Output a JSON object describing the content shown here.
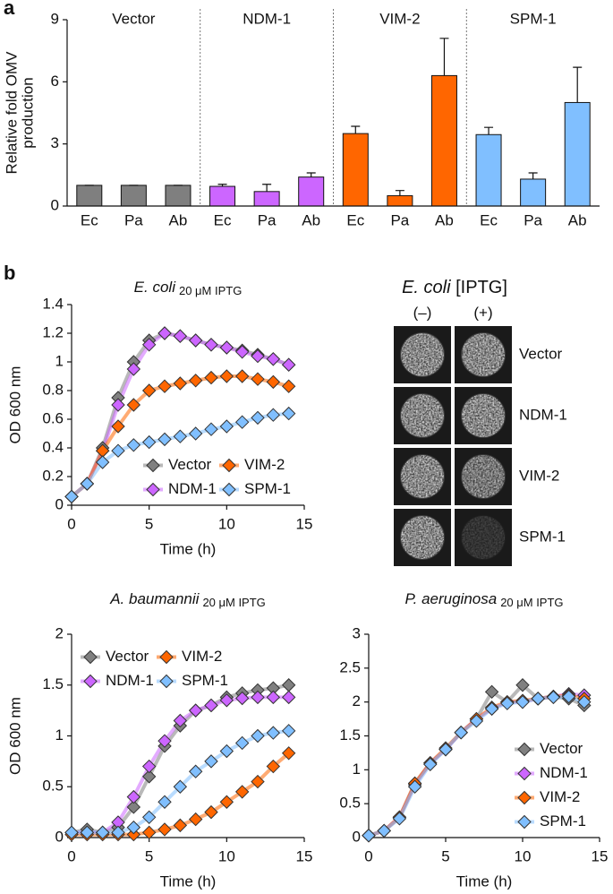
{
  "panel_labels": [
    "a",
    "b"
  ],
  "plate": {
    "title": "E. coli",
    "title_note": "[IPTG]",
    "columns": [
      "(–)",
      "(+)"
    ],
    "rows": [
      "Vector",
      "NDM-1",
      "VIM-2",
      "SPM-1"
    ]
  },
  "chart_data": [
    {
      "type": "bar",
      "y_label": [
        "Relative fold OMV",
        "production"
      ],
      "categories": [
        "Ec",
        "Pa",
        "Ab"
      ],
      "ylim": [
        0,
        9
      ],
      "yticks": [
        0,
        3,
        6,
        9
      ],
      "series": [
        {
          "name": "Vector",
          "color": "#7f7f7f",
          "values": [
            1,
            1,
            1
          ],
          "errors": [
            0,
            0,
            0
          ]
        },
        {
          "name": "NDM-1",
          "color": "#cc66ff",
          "values": [
            0.95,
            0.7,
            1.4
          ],
          "errors": [
            0.1,
            0.35,
            0.2
          ]
        },
        {
          "name": "VIM-2",
          "color": "#ff6600",
          "values": [
            3.5,
            0.5,
            6.3
          ],
          "errors": [
            0.35,
            0.25,
            1.8
          ]
        },
        {
          "name": "SPM-1",
          "color": "#80bfff",
          "values": [
            3.45,
            1.3,
            5.0
          ],
          "errors": [
            0.35,
            0.3,
            1.7
          ]
        }
      ]
    },
    {
      "type": "line",
      "title": "E. coli",
      "title_note": "20 μM IPTG",
      "x_label": "Time (h)",
      "y_label": "OD 600 nm",
      "x": [
        0,
        1,
        2,
        3,
        4,
        5,
        6,
        7,
        8,
        9,
        10,
        11,
        12,
        13,
        14
      ],
      "xlim": [
        0,
        15
      ],
      "xticks": [
        0,
        5,
        10,
        15
      ],
      "ylim": [
        0,
        1.4
      ],
      "yticks": [
        0,
        0.2,
        0.4,
        0.6,
        0.8,
        1,
        1.2,
        1.4
      ],
      "legend": "lower right",
      "legend_columns": 2,
      "series": [
        {
          "name": "Vector",
          "color": "#808080",
          "values": [
            0.06,
            0.15,
            0.4,
            0.75,
            1.0,
            1.15,
            1.2,
            1.18,
            1.15,
            1.12,
            1.1,
            1.08,
            1.05,
            1.02,
            0.98
          ]
        },
        {
          "name": "NDM-1",
          "color": "#cc66ff",
          "values": [
            0.06,
            0.15,
            0.38,
            0.7,
            0.95,
            1.12,
            1.2,
            1.18,
            1.15,
            1.12,
            1.1,
            1.07,
            1.04,
            1.02,
            0.98
          ]
        },
        {
          "name": "VIM-2",
          "color": "#ff6600",
          "values": [
            0.06,
            0.15,
            0.38,
            0.55,
            0.7,
            0.8,
            0.83,
            0.85,
            0.87,
            0.89,
            0.9,
            0.9,
            0.88,
            0.86,
            0.83
          ]
        },
        {
          "name": "SPM-1",
          "color": "#80bfff",
          "values": [
            0.06,
            0.15,
            0.3,
            0.38,
            0.42,
            0.44,
            0.46,
            0.48,
            0.5,
            0.53,
            0.55,
            0.58,
            0.61,
            0.63,
            0.64
          ]
        }
      ]
    },
    {
      "type": "line",
      "title": "A. baumannii",
      "title_note": "20 μM IPTG",
      "x_label": "Time (h)",
      "y_label": "OD 600 nm",
      "x": [
        0,
        1,
        2,
        3,
        4,
        5,
        6,
        7,
        8,
        9,
        10,
        11,
        12,
        13,
        14
      ],
      "xlim": [
        0,
        15
      ],
      "xticks": [
        0,
        5,
        10,
        15
      ],
      "ylim": [
        0,
        2
      ],
      "yticks": [
        0,
        0.5,
        1,
        1.5,
        2
      ],
      "legend": "upper left",
      "legend_columns": 2,
      "series": [
        {
          "name": "Vector",
          "color": "#808080",
          "values": [
            0.05,
            0.08,
            0.05,
            0.1,
            0.3,
            0.6,
            0.9,
            1.1,
            1.25,
            1.3,
            1.38,
            1.42,
            1.45,
            1.47,
            1.5
          ]
        },
        {
          "name": "NDM-1",
          "color": "#cc66ff",
          "values": [
            0.05,
            0.05,
            0.05,
            0.15,
            0.4,
            0.7,
            0.95,
            1.15,
            1.25,
            1.3,
            1.35,
            1.37,
            1.38,
            1.38,
            1.38
          ]
        },
        {
          "name": "VIM-2",
          "color": "#ff6600",
          "values": [
            0.03,
            0.03,
            0.03,
            0.03,
            0.03,
            0.05,
            0.08,
            0.12,
            0.18,
            0.25,
            0.35,
            0.45,
            0.55,
            0.7,
            0.83
          ]
        },
        {
          "name": "SPM-1",
          "color": "#80bfff",
          "values": [
            0.05,
            0.05,
            0.05,
            0.05,
            0.1,
            0.2,
            0.35,
            0.5,
            0.65,
            0.75,
            0.85,
            0.93,
            1.0,
            1.03,
            1.05
          ]
        }
      ]
    },
    {
      "type": "line",
      "title": "P. aeruginosa",
      "title_note": "20 μM IPTG",
      "x_label": "Time (h)",
      "x": [
        0,
        1,
        2,
        3,
        4,
        5,
        6,
        7,
        8,
        9,
        10,
        11,
        12,
        13,
        14
      ],
      "xlim": [
        0,
        15
      ],
      "xticks": [
        0,
        5,
        10,
        15
      ],
      "ylim": [
        0,
        3
      ],
      "yticks": [
        0,
        0.5,
        1,
        1.5,
        2,
        2.5,
        3
      ],
      "legend": "lower right",
      "legend_columns": 1,
      "series": [
        {
          "name": "Vector",
          "color": "#808080",
          "values": [
            0.03,
            0.1,
            0.3,
            0.8,
            1.1,
            1.3,
            1.55,
            1.75,
            2.15,
            2.0,
            2.25,
            2.05,
            2.08,
            2.05,
            1.95
          ]
        },
        {
          "name": "NDM-1",
          "color": "#cc66ff",
          "values": [
            0.03,
            0.1,
            0.3,
            0.78,
            1.1,
            1.3,
            1.55,
            1.75,
            1.9,
            2.0,
            2.0,
            2.05,
            2.08,
            2.12,
            2.1
          ]
        },
        {
          "name": "VIM-2",
          "color": "#ff6600",
          "values": [
            0.03,
            0.1,
            0.3,
            0.8,
            1.1,
            1.32,
            1.55,
            1.75,
            1.92,
            2.0,
            2.02,
            2.05,
            2.08,
            2.1,
            2.05
          ]
        },
        {
          "name": "SPM-1",
          "color": "#80bfff",
          "values": [
            0.03,
            0.1,
            0.28,
            0.75,
            1.08,
            1.3,
            1.55,
            1.72,
            1.9,
            1.98,
            2.0,
            2.05,
            2.07,
            2.08,
            2.0
          ]
        }
      ]
    }
  ]
}
